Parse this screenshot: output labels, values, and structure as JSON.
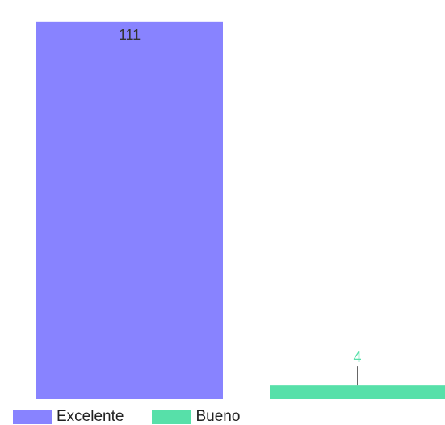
{
  "chart_data": {
    "type": "bar",
    "categories": [
      "Excelente",
      "Bueno"
    ],
    "values": [
      111,
      4
    ],
    "ylim": [
      0,
      115
    ],
    "grid": false,
    "legend_position": "bottom-left",
    "colors": [
      "#8883ff",
      "#57e0a9"
    ],
    "data_labels": [
      "111",
      "4"
    ],
    "data_label_colors": [
      "#333333",
      "#57e0a9"
    ]
  },
  "legend": {
    "items": [
      {
        "label": "Excelente",
        "color": "#8883ff"
      },
      {
        "label": "Bueno",
        "color": "#57e0a9"
      }
    ]
  }
}
